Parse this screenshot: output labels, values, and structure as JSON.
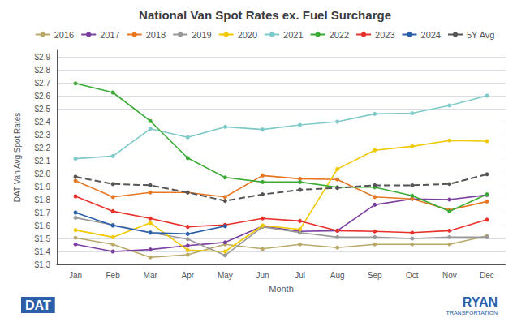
{
  "chart_data": {
    "type": "line",
    "title": "National Van Spot Rates ex. Fuel Surcharge",
    "xlabel": "Month",
    "ylabel": "DAT Van Avg Spot Rates",
    "categories": [
      "Jan",
      "Feb",
      "Mar",
      "Apr",
      "May",
      "Jun",
      "Jul",
      "Aug",
      "Sep",
      "Oct",
      "Nov",
      "Dec"
    ],
    "series": [
      {
        "name": "2016",
        "color": "#b8a96a",
        "line_style": "solid",
        "marker": "circle",
        "values": [
          1.505,
          1.455,
          1.355,
          1.375,
          1.455,
          1.42,
          1.455,
          1.43,
          1.455,
          1.455,
          1.455,
          1.52
        ]
      },
      {
        "name": "2017",
        "color": "#7b3fa0",
        "line_style": "solid",
        "marker": "circle",
        "values": [
          1.455,
          1.4,
          1.415,
          1.445,
          1.47,
          1.595,
          1.555,
          1.56,
          1.76,
          1.805,
          1.8,
          1.835
        ]
      },
      {
        "name": "2018",
        "color": "#e87722",
        "line_style": "solid",
        "marker": "circle",
        "values": [
          1.945,
          1.82,
          1.855,
          1.855,
          1.82,
          1.985,
          1.96,
          1.955,
          1.82,
          1.805,
          1.72,
          1.785
        ]
      },
      {
        "name": "2019",
        "color": "#999999",
        "line_style": "solid",
        "marker": "circle",
        "values": [
          1.66,
          1.605,
          1.545,
          1.495,
          1.37,
          1.59,
          1.545,
          1.51,
          1.51,
          1.5,
          1.51,
          1.51
        ]
      },
      {
        "name": "2020",
        "color": "#f0c800",
        "line_style": "solid",
        "marker": "circle",
        "values": [
          1.565,
          1.51,
          1.62,
          1.41,
          1.4,
          1.6,
          1.57,
          2.035,
          2.18,
          2.21,
          2.255,
          2.25
        ]
      },
      {
        "name": "2021",
        "color": "#7ecac8",
        "line_style": "solid",
        "marker": "circle",
        "values": [
          2.115,
          2.135,
          2.345,
          2.28,
          2.36,
          2.34,
          2.375,
          2.4,
          2.46,
          2.465,
          2.525,
          2.6
        ]
      },
      {
        "name": "2022",
        "color": "#3aaa35",
        "line_style": "solid",
        "marker": "circle",
        "values": [
          2.695,
          2.625,
          2.405,
          2.12,
          1.97,
          1.935,
          1.935,
          1.895,
          1.895,
          1.83,
          1.71,
          1.84
        ]
      },
      {
        "name": "2023",
        "color": "#e8312a",
        "line_style": "solid",
        "marker": "circle",
        "values": [
          1.825,
          1.71,
          1.655,
          1.59,
          1.605,
          1.655,
          1.635,
          1.56,
          1.555,
          1.545,
          1.56,
          1.645
        ]
      },
      {
        "name": "2024",
        "color": "#2b5faa",
        "line_style": "solid",
        "marker": "circle",
        "values": [
          1.7,
          1.6,
          1.545,
          1.535,
          1.595,
          null,
          null,
          null,
          null,
          null,
          null,
          null
        ]
      },
      {
        "name": "5Y Avg",
        "color": "#555555",
        "line_style": "dashed",
        "marker": "circle",
        "values": [
          1.975,
          1.92,
          1.91,
          1.855,
          1.79,
          1.84,
          1.875,
          1.89,
          1.91,
          1.91,
          1.92,
          1.995
        ]
      }
    ],
    "ylim": [
      1.3,
      2.95
    ],
    "yticks": [
      {
        "value": 1.3,
        "label": "$1.3"
      },
      {
        "value": 1.4,
        "label": "$1.4"
      },
      {
        "value": 1.5,
        "label": "$1.5"
      },
      {
        "value": 1.6,
        "label": "$1.6"
      },
      {
        "value": 1.7,
        "label": "$1.7"
      },
      {
        "value": 1.8,
        "label": "$1.8"
      },
      {
        "value": 1.9,
        "label": "$1.9"
      },
      {
        "value": 2.0,
        "label": "$2.0"
      },
      {
        "value": 2.1,
        "label": "$2.1"
      },
      {
        "value": 2.2,
        "label": "$2.2"
      },
      {
        "value": 2.3,
        "label": "$2.3"
      },
      {
        "value": 2.4,
        "label": "$2.4"
      },
      {
        "value": 2.5,
        "label": "$2.5"
      },
      {
        "value": 2.6,
        "label": "$2.6"
      },
      {
        "value": 2.7,
        "label": "$2.7"
      },
      {
        "value": 2.8,
        "label": "$2.8"
      },
      {
        "value": 2.9,
        "label": "$2.9"
      }
    ],
    "grid": true,
    "legend": "top",
    "annotations": [
      {
        "text": "DAT",
        "color": "#2b5faa"
      },
      {
        "text": "RYAN",
        "color": "#2b5faa"
      },
      {
        "text": "TRANSPORTATION",
        "color": "#2b5faa"
      }
    ]
  }
}
